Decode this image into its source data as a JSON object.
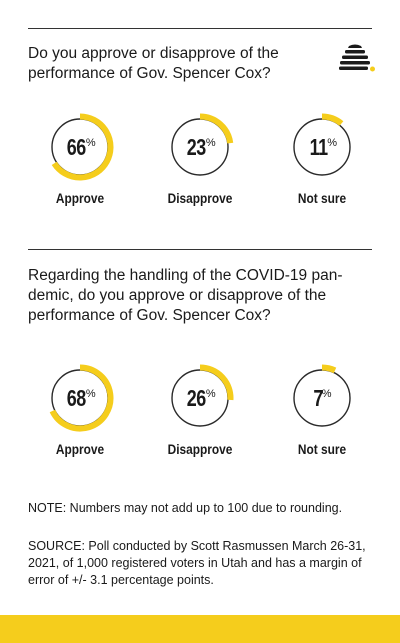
{
  "accent_color": "#f5cd1c",
  "ring_color": "#2a2a2a",
  "logo_icon": "beehive-icon",
  "chart_data": [
    {
      "type": "pie",
      "title": "Do you approve or disapprove of the performance of Gov. Spencer Cox?",
      "categories": [
        "Approve",
        "Disapprove",
        "Not sure"
      ],
      "values": [
        66,
        23,
        11
      ],
      "unit": "%"
    },
    {
      "type": "pie",
      "title": "Regarding the handling of the COVID-19 pandemic, do you approve or disapprove of the performance of Gov. Spencer Cox?",
      "title_lines": [
        "Regarding the handling of the COVID-19 pan-",
        "demic, do you approve or disapprove of the",
        "performance of Gov. Spencer Cox?"
      ],
      "categories": [
        "Approve",
        "Disapprove",
        "Not sure"
      ],
      "values": [
        68,
        26,
        7
      ],
      "unit": "%"
    }
  ],
  "footer": {
    "note": "NOTE: Numbers may not add up to 100 due to rounding.",
    "source": "SOURCE: Poll conducted by Scott Rasmussen March 26-31, 2021, of 1,000 registered voters in Utah and has a margin of error of +/- 3.1 percentage points."
  }
}
